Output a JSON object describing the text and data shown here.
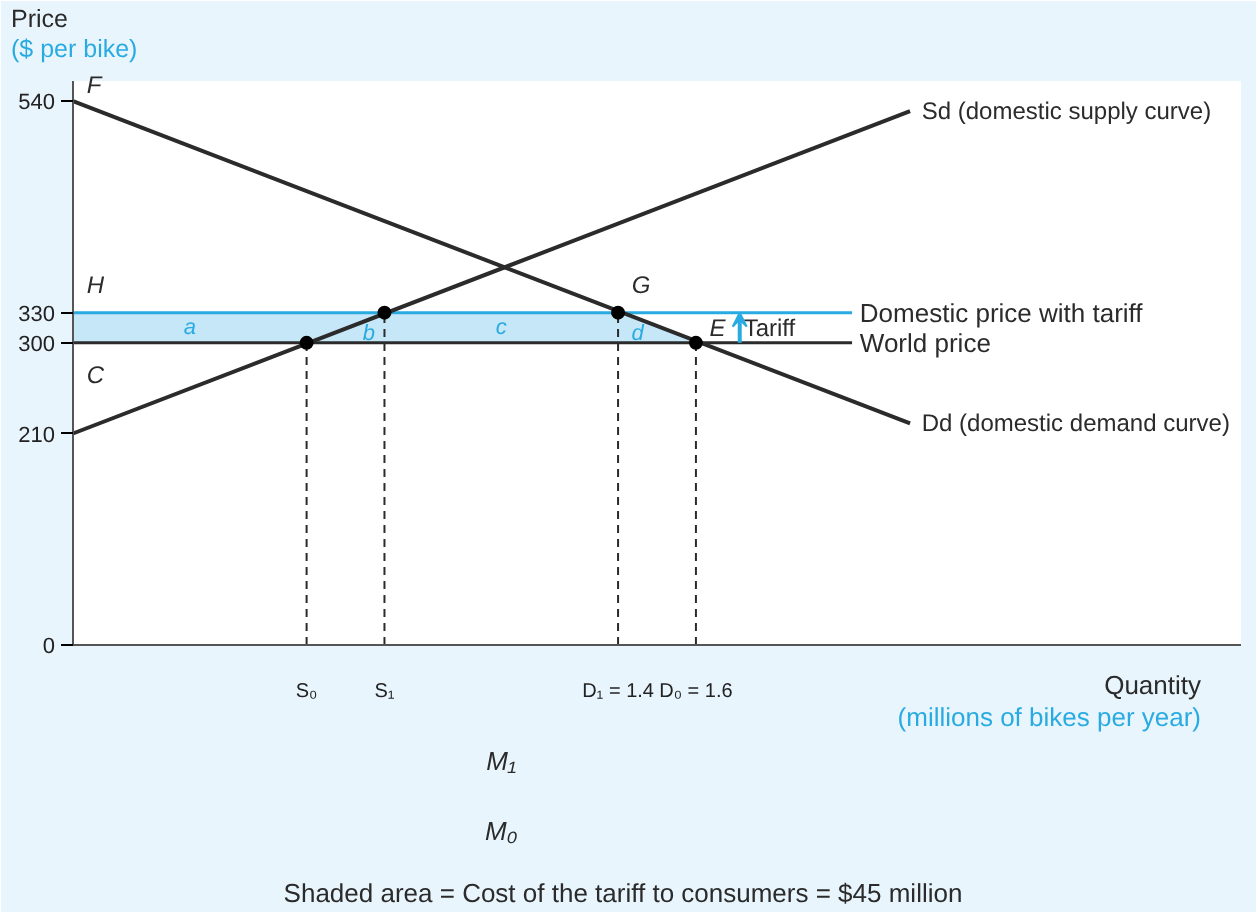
{
  "chart_data": {
    "type": "line",
    "ylabel": "Price\n($ per bike)",
    "xlabel": "Quantity\n(millions of bikes per year)",
    "xlim": [
      0,
      3.0
    ],
    "ylim": [
      0,
      560
    ],
    "xticks": [
      {
        "value": 0.6,
        "label": "S₀"
      },
      {
        "value": 0.8,
        "label": "S₁"
      },
      {
        "value": 1.4,
        "label": "D₁ = 1.4"
      },
      {
        "value": 1.6,
        "label": "D₀ = 1.6"
      }
    ],
    "yticks": [
      0,
      210,
      300,
      330,
      540
    ],
    "series": [
      {
        "name": "Sd (domestic supply curve)",
        "color": "#2b2b2b",
        "x": [
          0,
          2.15
        ],
        "values": [
          210,
          530
        ]
      },
      {
        "name": "Dd (domestic demand curve)",
        "color": "#2b2b2b",
        "x": [
          0,
          2.15
        ],
        "values": [
          540,
          220
        ]
      },
      {
        "color": "#2b2b2b",
        "line_style": "dashed",
        "x": [
          0.6,
          0.6
        ],
        "values": [
          0,
          300
        ]
      },
      {
        "color": "#2b2b2b",
        "line_style": "dashed",
        "x": [
          0.8,
          0.8
        ],
        "values": [
          0,
          330
        ]
      },
      {
        "color": "#2b2b2b",
        "line_style": "dashed",
        "x": [
          1.4,
          1.4
        ],
        "values": [
          0,
          330
        ]
      },
      {
        "color": "#2b2b2b",
        "line_style": "dashed",
        "x": [
          1.6,
          1.6
        ],
        "values": [
          0,
          300
        ]
      },
      {
        "type": "scatter",
        "color": "#000000",
        "marker": "circle",
        "x": [
          0.6,
          0.8,
          1.4,
          1.6
        ],
        "values": [
          300,
          330,
          330,
          300
        ]
      }
    ],
    "bands": [
      {
        "axis": "y",
        "from": 300,
        "to": 330,
        "color": "#c6e7f7"
      }
    ],
    "ref_lines": [
      {
        "axis": "y",
        "value": 330,
        "label": "Domestic price with tariff",
        "color": "#29abe2"
      },
      {
        "axis": "y",
        "value": 300,
        "label": "World price",
        "color": "#2b2b2b"
      }
    ],
    "annotations": [
      {
        "text": "F",
        "x": 0,
        "y": 540
      },
      {
        "text": "H",
        "x": 0,
        "y": 330
      },
      {
        "text": "C",
        "x": 0,
        "y": 300
      },
      {
        "text": "G",
        "x": 1.4,
        "y": 330
      },
      {
        "text": "E",
        "x": 1.6,
        "y": 300
      },
      "a",
      "b",
      "c",
      "d",
      "Tariff",
      "M₁",
      "M₀",
      "Shaded area = Cost of the tariff to consumers = $45 million"
    ],
    "line_style": "solid",
    "marker": "none",
    "legend": false,
    "grid": false
  }
}
